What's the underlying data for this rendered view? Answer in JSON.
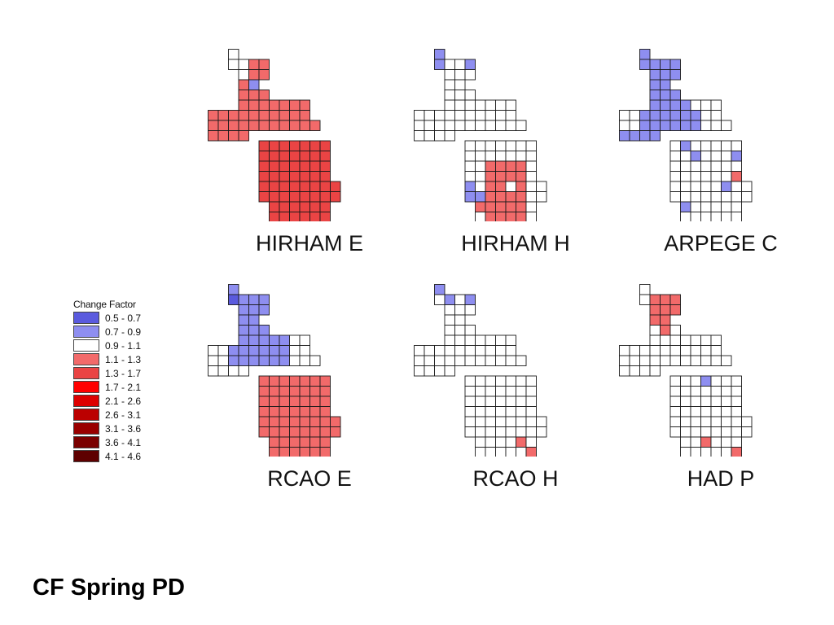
{
  "footer": {
    "title": "CF Spring PD"
  },
  "legend": {
    "title": "Change Factor",
    "items": [
      {
        "label": "0.5 - 0.7",
        "color": "#5a5ade"
      },
      {
        "label": "0.7 - 0.9",
        "color": "#8e8ef0"
      },
      {
        "label": "0.9 - 1.1",
        "color": "#ffffff"
      },
      {
        "label": "1.1 - 1.3",
        "color": "#f26a6a"
      },
      {
        "label": "1.3 - 1.7",
        "color": "#ea4444"
      },
      {
        "label": "1.7 - 2.1",
        "color": "#ff0000"
      },
      {
        "label": "2.1 - 2.6",
        "color": "#dd0000"
      },
      {
        "label": "2.6 - 3.1",
        "color": "#bb0000"
      },
      {
        "label": "3.1 - 3.6",
        "color": "#990000"
      },
      {
        "label": "3.6 - 4.1",
        "color": "#7a0000"
      },
      {
        "label": "4.1 - 4.6",
        "color": "#5e0000"
      }
    ]
  },
  "panels": [
    {
      "label": "HIRHAM E"
    },
    {
      "label": "HIRHAM H"
    },
    {
      "label": "ARPEGE C"
    },
    {
      "label": "RCAO E"
    },
    {
      "label": "RCAO H"
    },
    {
      "label": "HAD P"
    }
  ]
}
